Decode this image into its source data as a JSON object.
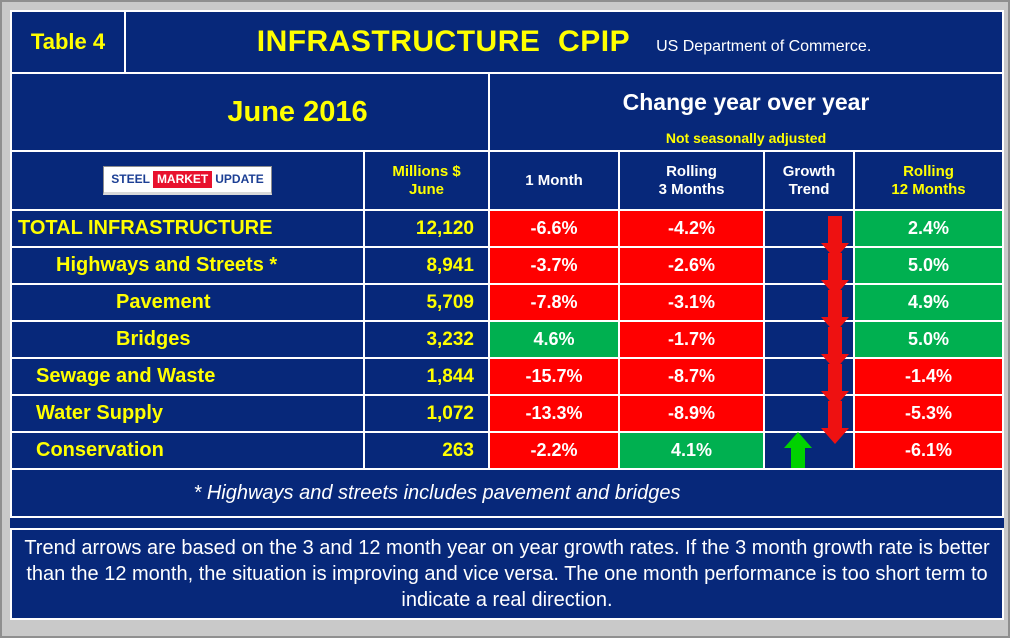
{
  "colors": {
    "navy": "#07287a",
    "yellow": "#ffff00",
    "red": "#ff0000",
    "green": "#00b050",
    "arrow-red": "#ee1111",
    "arrow-green": "#00d200",
    "frame": "#c9c9c9"
  },
  "title_bar": {
    "table_label": "Table 4",
    "title": "INFRASTRUCTURE  CPIP",
    "subtitle": "US Department of Commerce."
  },
  "period_header": {
    "period": "June 2016",
    "change_title": "Change year over year",
    "change_note": "Not seasonally adjusted"
  },
  "logo": {
    "steel": "STEEL",
    "market": "MARKET",
    "update": "UPDATE"
  },
  "column_headers": {
    "millions_line1": "Millions $",
    "millions_line2": "June",
    "one_month": "1 Month",
    "rolling3_line1": "Rolling",
    "rolling3_line2": "3 Months",
    "growth_line1": "Growth",
    "growth_line2": "Trend",
    "rolling12_line1": "Rolling",
    "rolling12_line2": "12 Months"
  },
  "footnote": "* Highways and streets includes pavement and bridges",
  "bottom_note": "Trend arrows are based on the 3 and 12 month year on year growth rates. If the 3 month growth rate is better than the 12 month, the situation is improving and vice versa. The one month performance is too short term to indicate a real direction.",
  "chart_data": {
    "type": "table",
    "title": "INFRASTRUCTURE CPIP",
    "period": "June 2016",
    "columns": [
      "Millions $ June",
      "1 Month",
      "Rolling 3 Months",
      "Growth Trend",
      "Rolling 12 Months"
    ],
    "rows": [
      {
        "label": "TOTAL INFRASTRUCTURE",
        "millions": "12,120",
        "one_month": "-6.6%",
        "rolling_3": "-4.2%",
        "trend": "down",
        "rolling_12": "2.4%"
      },
      {
        "label": "Highways and Streets *",
        "millions": "8,941",
        "one_month": "-3.7%",
        "rolling_3": "-2.6%",
        "trend": "down",
        "rolling_12": "5.0%"
      },
      {
        "label": "Pavement",
        "millions": "5,709",
        "one_month": "-7.8%",
        "rolling_3": "-3.1%",
        "trend": "down",
        "rolling_12": "4.9%"
      },
      {
        "label": "Bridges",
        "millions": "3,232",
        "one_month": "4.6%",
        "rolling_3": "-1.7%",
        "trend": "down",
        "rolling_12": "5.0%"
      },
      {
        "label": "Sewage and Waste",
        "millions": "1,844",
        "one_month": "-15.7%",
        "rolling_3": "-8.7%",
        "trend": "down",
        "rolling_12": "-1.4%"
      },
      {
        "label": "Water Supply",
        "millions": "1,072",
        "one_month": "-13.3%",
        "rolling_3": "-8.9%",
        "trend": "down",
        "rolling_12": "-5.3%"
      },
      {
        "label": "Conservation",
        "millions": "263",
        "one_month": "-2.2%",
        "rolling_3": "4.1%",
        "trend": "up",
        "rolling_12": "-6.1%"
      }
    ]
  }
}
